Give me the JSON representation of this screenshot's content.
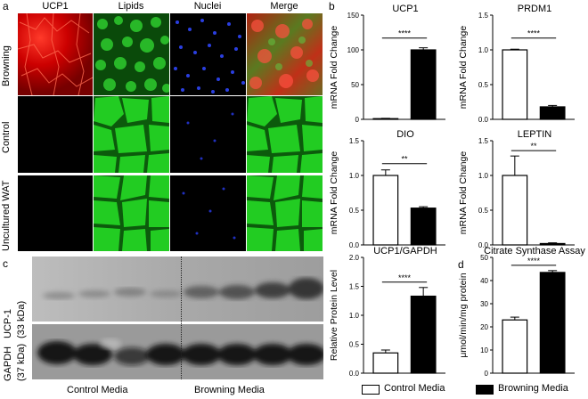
{
  "panel_letters": {
    "a": "a",
    "b": "b",
    "c": "c",
    "d": "d"
  },
  "micrograph": {
    "columns": [
      "UCP1",
      "Lipids",
      "Nuclei",
      "Merge"
    ],
    "rows": [
      "Browning",
      "Control",
      "Uncultured WAT"
    ],
    "colors": {
      "ucp1": "#e01010",
      "lipids": "#22cc22",
      "nuclei": "#1a2fd0"
    }
  },
  "western_blot": {
    "band_labels": {
      "ucp1_line1": "UCP-1",
      "ucp1_line2": "(33 kDa)",
      "gapdh_line1": "GAPDH",
      "gapdh_line2": "(37 kDa)"
    },
    "group_labels": [
      "Control Media",
      "Browning Media"
    ],
    "lanes_per_group": 4
  },
  "legend": {
    "items": [
      {
        "label": "Control Media",
        "color": "#ffffff"
      },
      {
        "label": "Browning Media",
        "color": "#000000"
      }
    ]
  },
  "chart_data": [
    {
      "type": "bar",
      "title": "UCP1",
      "ylabel": "mRNA Fold Change",
      "categories": [
        "Control Media",
        "Browning Media"
      ],
      "values": [
        1,
        100
      ],
      "errors": [
        0.5,
        3
      ],
      "ylim": [
        0,
        150
      ],
      "yticks": [
        0,
        50,
        100,
        150
      ],
      "significance": "****"
    },
    {
      "type": "bar",
      "title": "PRDM1",
      "ylabel": "mRNA Fold Change",
      "categories": [
        "Control Media",
        "Browning Media"
      ],
      "values": [
        1,
        0.18
      ],
      "errors": [
        0.01,
        0.02
      ],
      "ylim": [
        0,
        1.5
      ],
      "yticks": [
        0.0,
        0.5,
        1.0,
        1.5
      ],
      "significance": "****"
    },
    {
      "type": "bar",
      "title": "DIO",
      "ylabel": "mRNA Fold Change",
      "categories": [
        "Control Media",
        "Browning Media"
      ],
      "values": [
        1,
        0.53
      ],
      "errors": [
        0.08,
        0.02
      ],
      "ylim": [
        0,
        1.5
      ],
      "yticks": [
        0.0,
        0.5,
        1.0,
        1.5
      ],
      "significance": "**"
    },
    {
      "type": "bar",
      "title": "LEPTIN",
      "ylabel": "mRNA Fold Change",
      "categories": [
        "Control Media",
        "Browning Media"
      ],
      "values": [
        1,
        0.02
      ],
      "errors": [
        0.28,
        0.01
      ],
      "ylim": [
        0,
        1.5
      ],
      "yticks": [
        0.0,
        0.5,
        1.0,
        1.5
      ],
      "significance": "**"
    },
    {
      "type": "bar",
      "title": "UCP1/GAPDH",
      "ylabel": "Relative Protein Level",
      "categories": [
        "Control Media",
        "Browning Media"
      ],
      "values": [
        0.35,
        1.33
      ],
      "errors": [
        0.05,
        0.15
      ],
      "ylim": [
        0,
        2.0
      ],
      "yticks": [
        0.0,
        0.5,
        1.0,
        1.5,
        2.0
      ],
      "significance": "****"
    },
    {
      "type": "bar",
      "title": "Citrate Synthase Assay",
      "ylabel": "μmol/min/mg protein",
      "categories": [
        "Control Media",
        "Browning Media"
      ],
      "values": [
        23,
        43.5
      ],
      "errors": [
        1.2,
        0.8
      ],
      "ylim": [
        0,
        50
      ],
      "yticks": [
        0,
        10,
        20,
        30,
        40,
        50
      ],
      "significance": "****"
    }
  ]
}
